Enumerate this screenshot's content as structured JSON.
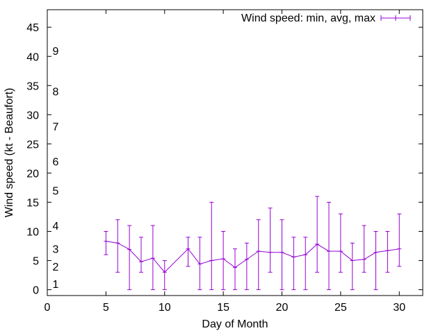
{
  "chart_data": {
    "type": "line",
    "xlabel": "Day of Month",
    "ylabel": "Wind speed (kt - Beaufort)",
    "xlim": [
      0,
      32
    ],
    "ylim": [
      -1,
      48
    ],
    "xticks": [
      0,
      5,
      10,
      15,
      20,
      25,
      30
    ],
    "yticks": [
      0,
      5,
      10,
      15,
      20,
      25,
      30,
      35,
      40,
      45
    ],
    "grid": false,
    "legend": "top-right",
    "colors": {
      "series": "#9400D3",
      "axis": "#000000"
    },
    "beaufort_labels": [
      {
        "label": "1",
        "y": 1
      },
      {
        "label": "2",
        "y": 4
      },
      {
        "label": "3",
        "y": 7
      },
      {
        "label": "4",
        "y": 11
      },
      {
        "label": "5",
        "y": 17
      },
      {
        "label": "6",
        "y": 22
      },
      {
        "label": "7",
        "y": 28
      },
      {
        "label": "8",
        "y": 34
      },
      {
        "label": "9",
        "y": 41
      }
    ],
    "series": [
      {
        "name": "Wind speed: min, avg, max",
        "points": [
          {
            "x": 5,
            "min": 6,
            "avg": 8.3,
            "max": 10
          },
          {
            "x": 6,
            "min": 3,
            "avg": 8.0,
            "max": 12
          },
          {
            "x": 7,
            "min": 0,
            "avg": 6.9,
            "max": 11
          },
          {
            "x": 8,
            "min": 3,
            "avg": 4.8,
            "max": 9
          },
          {
            "x": 9,
            "min": 0,
            "avg": 5.4,
            "max": 11
          },
          {
            "x": 10,
            "min": 0,
            "avg": 3.0,
            "max": 5
          },
          {
            "x": 12,
            "min": 4,
            "avg": 7.0,
            "max": 9
          },
          {
            "x": 13,
            "min": 0,
            "avg": 4.4,
            "max": 9
          },
          {
            "x": 14,
            "min": 0,
            "avg": 5.0,
            "max": 15
          },
          {
            "x": 15,
            "min": 0,
            "avg": 5.3,
            "max": 10
          },
          {
            "x": 16,
            "min": 0,
            "avg": 3.8,
            "max": 7
          },
          {
            "x": 17,
            "min": 0,
            "avg": 5.2,
            "max": 8
          },
          {
            "x": 18,
            "min": 0,
            "avg": 6.6,
            "max": 12
          },
          {
            "x": 19,
            "min": 3,
            "avg": 6.4,
            "max": 14
          },
          {
            "x": 20,
            "min": 0,
            "avg": 6.4,
            "max": 12
          },
          {
            "x": 21,
            "min": 0,
            "avg": 5.6,
            "max": 9
          },
          {
            "x": 22,
            "min": 0,
            "avg": 6.0,
            "max": 9
          },
          {
            "x": 23,
            "min": 3,
            "avg": 7.8,
            "max": 16
          },
          {
            "x": 24,
            "min": 0,
            "avg": 6.6,
            "max": 15
          },
          {
            "x": 25,
            "min": 3,
            "avg": 6.6,
            "max": 13
          },
          {
            "x": 26,
            "min": 0,
            "avg": 5.0,
            "max": 8
          },
          {
            "x": 27,
            "min": 3,
            "avg": 5.2,
            "max": 11
          },
          {
            "x": 28,
            "min": 0,
            "avg": 6.4,
            "max": 10
          },
          {
            "x": 29,
            "min": 3,
            "avg": 6.7,
            "max": 10
          },
          {
            "x": 30,
            "min": 4,
            "avg": 7.0,
            "max": 13
          }
        ]
      }
    ]
  }
}
